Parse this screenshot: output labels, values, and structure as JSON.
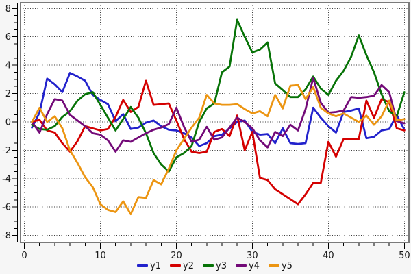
{
  "chart_data": {
    "type": "line",
    "x_start": 1,
    "xlim": [
      -0.5,
      50.6
    ],
    "ylim": [
      -8.5,
      8.4
    ],
    "grid": "dotted",
    "legend_position": "bottom-center",
    "title": "",
    "xlabel": "",
    "ylabel": "",
    "x_ticks_major": [
      0,
      10,
      20,
      30,
      40,
      50
    ],
    "x_tick_labels": [
      "0",
      "10",
      "20",
      "30",
      "40",
      "50"
    ],
    "x_minor_step": 2,
    "y_ticks_major": [
      -8,
      -6,
      -4,
      -2,
      0,
      2,
      4,
      6,
      8
    ],
    "y_tick_labels": [
      "-8",
      "-6",
      "-4",
      "-2",
      "0",
      "2",
      "4",
      "6",
      "8"
    ],
    "y_minor_step": 0.5,
    "series": [
      {
        "name": "y1",
        "color": "#2222cc",
        "values": [
          -0.4,
          0.65,
          3.05,
          2.65,
          2.1,
          3.45,
          3.2,
          2.9,
          1.9,
          1.55,
          1.25,
          0.05,
          0.55,
          -0.5,
          -0.4,
          -0.05,
          0.1,
          -0.3,
          -0.55,
          -0.6,
          -0.8,
          -1.1,
          -1.7,
          -1.5,
          -1.0,
          -0.9,
          -0.45,
          0.0,
          0.1,
          -0.7,
          -0.9,
          -0.85,
          -1.5,
          -0.45,
          -1.5,
          -1.55,
          -1.5,
          1.0,
          0.3,
          -0.3,
          -0.75,
          0.7,
          0.8,
          0.95,
          -1.15,
          -1.05,
          -0.6,
          -0.5,
          0.5,
          -0.55
        ]
      },
      {
        "name": "y2",
        "color": "#d40000",
        "values": [
          0.0,
          0.15,
          -0.6,
          -0.75,
          -1.5,
          -2.1,
          -1.35,
          -0.3,
          -0.45,
          -0.6,
          -0.5,
          0.35,
          1.55,
          0.7,
          1.05,
          2.9,
          1.2,
          1.25,
          1.3,
          0.1,
          -1.2,
          -2.1,
          -2.2,
          -2.1,
          -0.7,
          -0.5,
          -1.0,
          0.45,
          -2.0,
          -0.7,
          -3.95,
          -4.1,
          -4.75,
          -5.1,
          -5.45,
          -5.8,
          -5.1,
          -4.3,
          -4.3,
          -1.4,
          -2.45,
          -1.2,
          -1.2,
          -1.2,
          1.5,
          0.3,
          1.6,
          1.4,
          -0.45,
          -0.6
        ]
      },
      {
        "name": "y3",
        "color": "#077307",
        "values": [
          -0.2,
          -0.5,
          -0.55,
          -0.3,
          0.35,
          0.75,
          1.5,
          1.95,
          2.1,
          1.2,
          0.3,
          -0.6,
          0.2,
          1.05,
          0.3,
          -0.8,
          -2.2,
          -3.0,
          -3.5,
          -2.5,
          -2.2,
          -1.7,
          0.0,
          0.95,
          1.3,
          3.5,
          3.9,
          7.2,
          6.0,
          4.9,
          5.1,
          5.6,
          2.7,
          2.25,
          1.75,
          1.75,
          2.3,
          3.2,
          2.35,
          1.9,
          2.9,
          3.6,
          4.6,
          6.1,
          4.7,
          3.5,
          1.95,
          0.75,
          0.4,
          2.1
        ]
      },
      {
        "name": "y4",
        "color": "#730a78",
        "values": [
          0.0,
          -0.75,
          0.55,
          1.6,
          1.5,
          0.5,
          0.1,
          -0.3,
          -0.8,
          -0.9,
          -1.3,
          -2.1,
          -1.3,
          -1.4,
          -1.1,
          -0.8,
          -0.55,
          -0.4,
          -0.15,
          1.0,
          -0.35,
          -1.4,
          -1.25,
          -0.35,
          -1.25,
          -1.1,
          -0.4,
          0.3,
          0.0,
          -0.45,
          -1.3,
          -1.8,
          -0.7,
          -1.0,
          -0.2,
          -0.6,
          0.9,
          3.1,
          1.35,
          0.65,
          0.7,
          0.8,
          1.75,
          1.7,
          1.75,
          1.85,
          2.6,
          2.1,
          0.05,
          -0.1
        ]
      },
      {
        "name": "y5",
        "color": "#ec9512",
        "values": [
          0.0,
          1.0,
          0.0,
          0.4,
          -0.45,
          -2.0,
          -2.9,
          -3.9,
          -4.6,
          -5.8,
          -6.2,
          -6.35,
          -5.6,
          -6.5,
          -5.3,
          -5.35,
          -4.1,
          -4.4,
          -3.3,
          -2.0,
          -1.2,
          -0.4,
          0.3,
          1.9,
          1.3,
          1.2,
          1.2,
          1.25,
          0.9,
          0.6,
          0.75,
          0.4,
          1.9,
          0.95,
          2.55,
          2.6,
          1.6,
          2.45,
          1.0,
          0.6,
          0.4,
          0.6,
          0.3,
          0.0,
          0.45,
          -0.2,
          0.4,
          1.5,
          0.1,
          0.2
        ]
      }
    ],
    "style_colors": {
      "plot_background": "#ffffff",
      "frame": "#7a7a7a",
      "grid": "#3c3c3c",
      "axis": "#000000",
      "tick_label": "#1a1a1a"
    }
  }
}
